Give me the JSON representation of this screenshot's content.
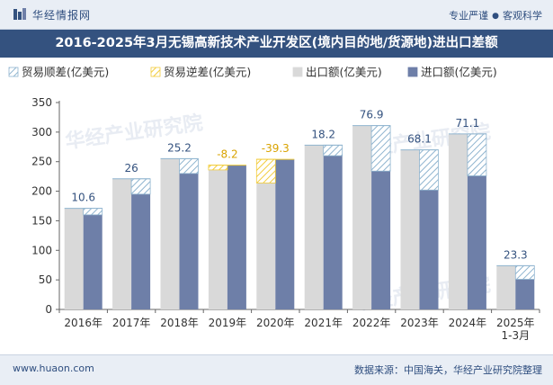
{
  "header": {
    "logo_text": "华经情报网",
    "slogan_left": "专业严谨",
    "slogan_right": "客观科学"
  },
  "footer": {
    "url": "www.huaon.com",
    "source": "数据来源：中国海关，华经产业研究院整理"
  },
  "watermark": "华经产业研究院",
  "colors": {
    "export": "#d9d9d9",
    "import": "#6e7fa8",
    "surplus_hatch": "#8fb4cf",
    "deficit_hatch": "#f2cc3c",
    "surplus_label": "#34527f",
    "deficit_label": "#d9a300",
    "header_bg": "#34527f"
  },
  "chart_data": {
    "type": "bar",
    "title": "2016-2025年3月无锡高新技术产业开发区(境内目的地/货源地)进出口差额",
    "legend": [
      {
        "key": "surplus",
        "label": "贸易顺差(亿美元)",
        "swatch": "hatch-blue"
      },
      {
        "key": "deficit",
        "label": "贸易逆差(亿美元)",
        "swatch": "hatch-yellow"
      },
      {
        "key": "export",
        "label": "出口额(亿美元)",
        "swatch": "solid-gray"
      },
      {
        "key": "import",
        "label": "进口额(亿美元)",
        "swatch": "solid-blue"
      }
    ],
    "legend_position": "top-left",
    "categories": [
      [
        "2016年"
      ],
      [
        "2017年"
      ],
      [
        "2018年"
      ],
      [
        "2019年"
      ],
      [
        "2020年"
      ],
      [
        "2021年"
      ],
      [
        "2022年"
      ],
      [
        "2023年"
      ],
      [
        "2024年"
      ],
      [
        "2025年",
        "1-3月"
      ]
    ],
    "series": [
      {
        "name": "出口额(亿美元)",
        "values": [
          171,
          221,
          255,
          236,
          214,
          278,
          311,
          270,
          297,
          74
        ]
      },
      {
        "name": "进口额(亿美元)",
        "values": [
          160,
          195,
          230,
          244,
          254,
          260,
          234,
          202,
          226,
          51
        ]
      }
    ],
    "balance_labels": [
      "10.6",
      "26",
      "25.2",
      "-8.2",
      "-39.3",
      "18.2",
      "76.9",
      "68.1",
      "71.1",
      "23.3"
    ],
    "ylim": [
      0,
      350
    ],
    "yticks": [
      0,
      50,
      100,
      150,
      200,
      250,
      300,
      350
    ],
    "grid": false
  }
}
